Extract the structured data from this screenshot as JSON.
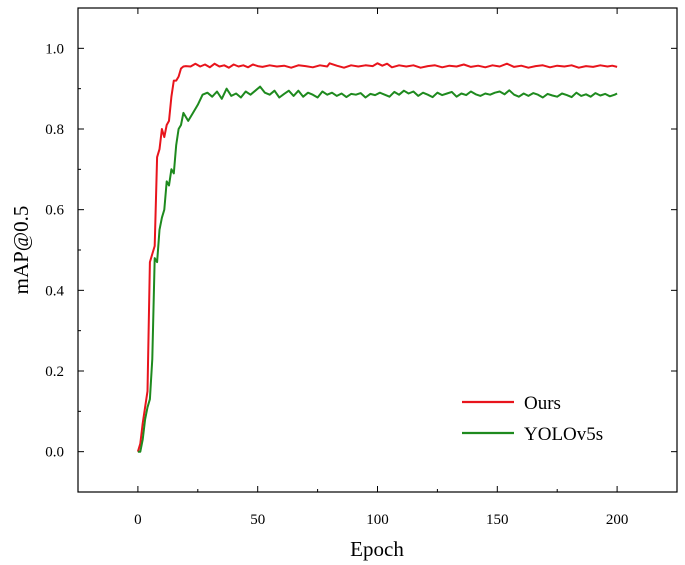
{
  "chart_data": {
    "type": "line",
    "title": "",
    "xlabel": "Epoch",
    "ylabel": "mAP@0.5",
    "xlim": [
      -25,
      225
    ],
    "ylim": [
      -0.1,
      1.1
    ],
    "xticks": [
      0,
      50,
      100,
      150,
      200
    ],
    "yticks": [
      0.0,
      0.2,
      0.4,
      0.6,
      0.8,
      1.0
    ],
    "xtick_labels": [
      "0",
      "50",
      "100",
      "150",
      "200"
    ],
    "ytick_labels": [
      "0.0",
      "0.2",
      "0.4",
      "0.6",
      "0.8",
      "1.0"
    ],
    "grid": false,
    "legend_position": "bottom-right",
    "series": [
      {
        "name": "Ours",
        "color": "#e8141c",
        "points": [
          [
            0,
            0.0
          ],
          [
            1,
            0.02
          ],
          [
            2,
            0.07
          ],
          [
            3,
            0.11
          ],
          [
            4,
            0.15
          ],
          [
            5,
            0.47
          ],
          [
            6,
            0.49
          ],
          [
            7,
            0.51
          ],
          [
            8,
            0.73
          ],
          [
            9,
            0.75
          ],
          [
            10,
            0.8
          ],
          [
            11,
            0.78
          ],
          [
            12,
            0.81
          ],
          [
            13,
            0.82
          ],
          [
            14,
            0.88
          ],
          [
            15,
            0.92
          ],
          [
            16,
            0.92
          ],
          [
            17,
            0.93
          ],
          [
            18,
            0.95
          ],
          [
            19,
            0.955
          ],
          [
            20,
            0.956
          ],
          [
            22,
            0.955
          ],
          [
            24,
            0.962
          ],
          [
            26,
            0.955
          ],
          [
            28,
            0.96
          ],
          [
            30,
            0.953
          ],
          [
            32,
            0.962
          ],
          [
            34,
            0.955
          ],
          [
            36,
            0.958
          ],
          [
            38,
            0.952
          ],
          [
            40,
            0.96
          ],
          [
            42,
            0.955
          ],
          [
            44,
            0.958
          ],
          [
            46,
            0.953
          ],
          [
            48,
            0.96
          ],
          [
            50,
            0.956
          ],
          [
            52,
            0.954
          ],
          [
            55,
            0.958
          ],
          [
            58,
            0.955
          ],
          [
            61,
            0.957
          ],
          [
            64,
            0.952
          ],
          [
            67,
            0.958
          ],
          [
            70,
            0.956
          ],
          [
            73,
            0.953
          ],
          [
            76,
            0.958
          ],
          [
            79,
            0.955
          ],
          [
            80,
            0.963
          ],
          [
            83,
            0.957
          ],
          [
            86,
            0.952
          ],
          [
            89,
            0.958
          ],
          [
            92,
            0.955
          ],
          [
            95,
            0.958
          ],
          [
            98,
            0.956
          ],
          [
            100,
            0.963
          ],
          [
            102,
            0.957
          ],
          [
            104,
            0.962
          ],
          [
            106,
            0.953
          ],
          [
            109,
            0.958
          ],
          [
            112,
            0.955
          ],
          [
            115,
            0.958
          ],
          [
            118,
            0.952
          ],
          [
            121,
            0.956
          ],
          [
            124,
            0.958
          ],
          [
            127,
            0.953
          ],
          [
            130,
            0.957
          ],
          [
            133,
            0.955
          ],
          [
            136,
            0.96
          ],
          [
            139,
            0.954
          ],
          [
            142,
            0.957
          ],
          [
            145,
            0.953
          ],
          [
            148,
            0.958
          ],
          [
            151,
            0.955
          ],
          [
            154,
            0.962
          ],
          [
            157,
            0.954
          ],
          [
            160,
            0.957
          ],
          [
            163,
            0.952
          ],
          [
            166,
            0.956
          ],
          [
            169,
            0.958
          ],
          [
            172,
            0.953
          ],
          [
            175,
            0.957
          ],
          [
            178,
            0.955
          ],
          [
            181,
            0.958
          ],
          [
            184,
            0.952
          ],
          [
            187,
            0.956
          ],
          [
            190,
            0.954
          ],
          [
            193,
            0.958
          ],
          [
            196,
            0.955
          ],
          [
            198,
            0.957
          ],
          [
            200,
            0.954
          ]
        ]
      },
      {
        "name": "YOLOv5s",
        "color": "#1e8a1e",
        "points": [
          [
            0,
            0.0
          ],
          [
            1,
            0.0
          ],
          [
            2,
            0.03
          ],
          [
            3,
            0.08
          ],
          [
            4,
            0.11
          ],
          [
            5,
            0.13
          ],
          [
            6,
            0.23
          ],
          [
            7,
            0.48
          ],
          [
            8,
            0.47
          ],
          [
            9,
            0.55
          ],
          [
            10,
            0.58
          ],
          [
            11,
            0.6
          ],
          [
            12,
            0.67
          ],
          [
            13,
            0.66
          ],
          [
            14,
            0.7
          ],
          [
            15,
            0.69
          ],
          [
            16,
            0.76
          ],
          [
            17,
            0.8
          ],
          [
            18,
            0.81
          ],
          [
            19,
            0.84
          ],
          [
            20,
            0.83
          ],
          [
            21,
            0.82
          ],
          [
            23,
            0.84
          ],
          [
            25,
            0.86
          ],
          [
            27,
            0.885
          ],
          [
            29,
            0.89
          ],
          [
            31,
            0.88
          ],
          [
            33,
            0.893
          ],
          [
            35,
            0.875
          ],
          [
            37,
            0.9
          ],
          [
            39,
            0.882
          ],
          [
            41,
            0.888
          ],
          [
            43,
            0.878
          ],
          [
            45,
            0.893
          ],
          [
            47,
            0.885
          ],
          [
            49,
            0.895
          ],
          [
            51,
            0.905
          ],
          [
            53,
            0.89
          ],
          [
            55,
            0.885
          ],
          [
            57,
            0.895
          ],
          [
            59,
            0.878
          ],
          [
            61,
            0.887
          ],
          [
            63,
            0.895
          ],
          [
            65,
            0.882
          ],
          [
            67,
            0.895
          ],
          [
            69,
            0.88
          ],
          [
            71,
            0.89
          ],
          [
            73,
            0.885
          ],
          [
            75,
            0.878
          ],
          [
            77,
            0.893
          ],
          [
            79,
            0.885
          ],
          [
            81,
            0.89
          ],
          [
            83,
            0.882
          ],
          [
            85,
            0.888
          ],
          [
            87,
            0.879
          ],
          [
            89,
            0.887
          ],
          [
            91,
            0.885
          ],
          [
            93,
            0.889
          ],
          [
            95,
            0.878
          ],
          [
            97,
            0.887
          ],
          [
            99,
            0.884
          ],
          [
            101,
            0.89
          ],
          [
            103,
            0.885
          ],
          [
            105,
            0.88
          ],
          [
            107,
            0.892
          ],
          [
            109,
            0.885
          ],
          [
            111,
            0.895
          ],
          [
            113,
            0.888
          ],
          [
            115,
            0.893
          ],
          [
            117,
            0.882
          ],
          [
            119,
            0.89
          ],
          [
            121,
            0.885
          ],
          [
            123,
            0.879
          ],
          [
            125,
            0.89
          ],
          [
            127,
            0.884
          ],
          [
            129,
            0.888
          ],
          [
            131,
            0.892
          ],
          [
            133,
            0.88
          ],
          [
            135,
            0.888
          ],
          [
            137,
            0.884
          ],
          [
            139,
            0.893
          ],
          [
            141,
            0.886
          ],
          [
            143,
            0.882
          ],
          [
            145,
            0.888
          ],
          [
            147,
            0.885
          ],
          [
            149,
            0.89
          ],
          [
            151,
            0.893
          ],
          [
            153,
            0.886
          ],
          [
            155,
            0.896
          ],
          [
            157,
            0.885
          ],
          [
            159,
            0.88
          ],
          [
            161,
            0.888
          ],
          [
            163,
            0.882
          ],
          [
            165,
            0.889
          ],
          [
            167,
            0.885
          ],
          [
            169,
            0.878
          ],
          [
            171,
            0.887
          ],
          [
            173,
            0.883
          ],
          [
            175,
            0.88
          ],
          [
            177,
            0.888
          ],
          [
            179,
            0.884
          ],
          [
            181,
            0.879
          ],
          [
            183,
            0.89
          ],
          [
            185,
            0.882
          ],
          [
            187,
            0.886
          ],
          [
            189,
            0.88
          ],
          [
            191,
            0.889
          ],
          [
            193,
            0.883
          ],
          [
            195,
            0.887
          ],
          [
            197,
            0.881
          ],
          [
            199,
            0.885
          ],
          [
            200,
            0.888
          ]
        ]
      }
    ]
  }
}
